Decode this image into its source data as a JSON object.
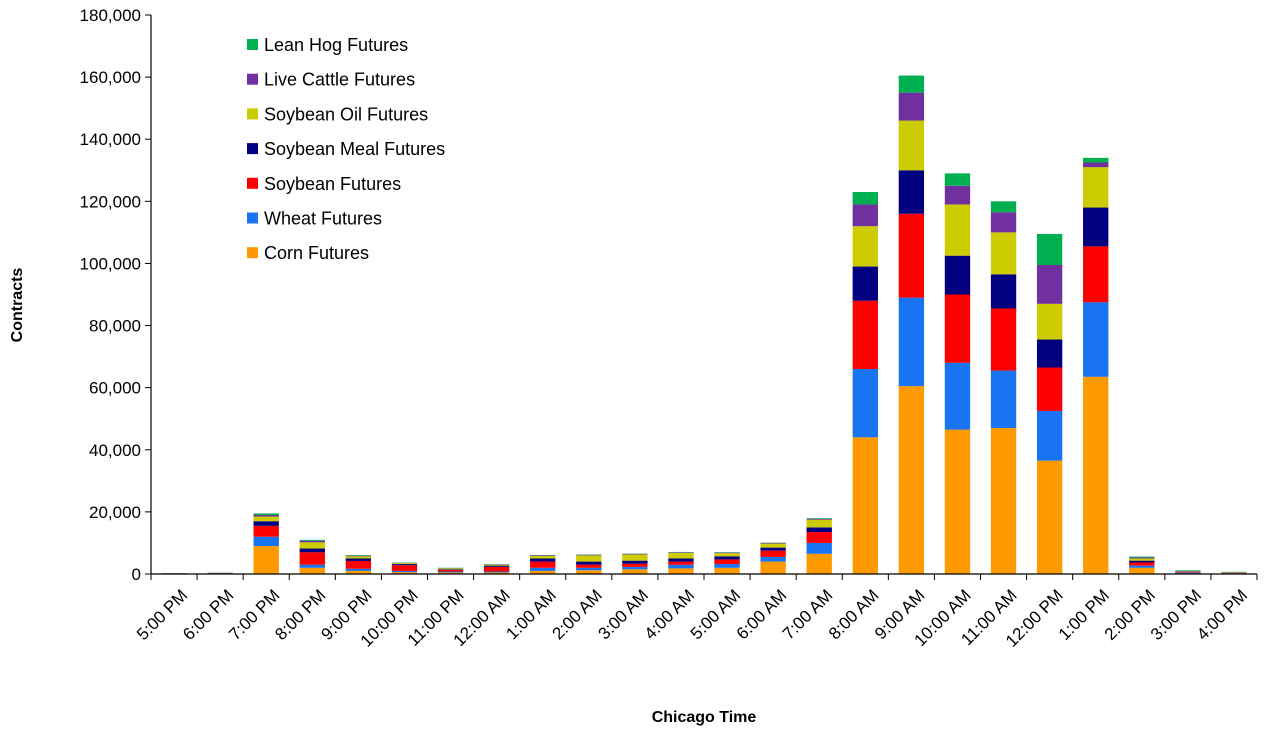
{
  "chart_data": {
    "type": "bar",
    "stacked": true,
    "title": "",
    "xlabel": "Chicago Time",
    "ylabel": "Contracts",
    "ylim": [
      0,
      180000
    ],
    "yticks": [
      0,
      20000,
      40000,
      60000,
      80000,
      100000,
      120000,
      140000,
      160000,
      180000
    ],
    "ytick_labels": [
      "0",
      "20,000",
      "40,000",
      "60,000",
      "80,000",
      "100,000",
      "120,000",
      "140,000",
      "160,000",
      "180,000"
    ],
    "grid": false,
    "legend_position": "top-left",
    "categories": [
      "5:00 PM",
      "6:00 PM",
      "7:00 PM",
      "8:00 PM",
      "9:00 PM",
      "10:00 PM",
      "11:00 PM",
      "12:00 AM",
      "1:00 AM",
      "2:00 AM",
      "3:00 AM",
      "4:00 AM",
      "5:00 AM",
      "6:00 AM",
      "7:00 AM",
      "8:00 AM",
      "9:00 AM",
      "10:00 AM",
      "11:00 AM",
      "12:00 PM",
      "1:00 PM",
      "2:00 PM",
      "3:00 PM",
      "4:00 PM"
    ],
    "series": [
      {
        "name": "Corn Futures",
        "color": "#FF9900",
        "values": [
          100,
          100,
          9000,
          2000,
          1000,
          600,
          500,
          500,
          1000,
          1200,
          1500,
          1800,
          2000,
          4000,
          6500,
          44000,
          60500,
          46500,
          47000,
          36500,
          63500,
          2000,
          200,
          100
        ]
      },
      {
        "name": "Wheat Futures",
        "color": "#1874F2",
        "values": [
          50,
          100,
          3000,
          1000,
          700,
          400,
          300,
          300,
          1000,
          800,
          800,
          1200,
          1200,
          1500,
          3500,
          22000,
          28500,
          21500,
          18500,
          16000,
          24000,
          700,
          200,
          100
        ]
      },
      {
        "name": "Soybean Futures",
        "color": "#FF0000",
        "values": [
          50,
          50,
          3500,
          4000,
          2500,
          1800,
          500,
          1500,
          2000,
          1000,
          1000,
          1000,
          1500,
          2000,
          3500,
          22000,
          27000,
          22000,
          20000,
          14000,
          18000,
          1000,
          200,
          100
        ]
      },
      {
        "name": "Soybean Meal Futures",
        "color": "#000080",
        "values": [
          50,
          50,
          1500,
          1200,
          800,
          400,
          200,
          400,
          1000,
          1000,
          1000,
          1000,
          1000,
          1000,
          1500,
          11000,
          14000,
          12500,
          11000,
          9000,
          12500,
          600,
          100,
          100
        ]
      },
      {
        "name": "Soybean Oil Futures",
        "color": "#CCCC00",
        "values": [
          50,
          50,
          1500,
          2000,
          700,
          300,
          300,
          300,
          800,
          2000,
          2000,
          1800,
          1000,
          1300,
          2500,
          13000,
          16000,
          16500,
          13500,
          11500,
          13000,
          700,
          100,
          100
        ]
      },
      {
        "name": "Live Cattle Futures",
        "color": "#7030A0",
        "values": [
          0,
          50,
          500,
          500,
          200,
          100,
          100,
          100,
          200,
          200,
          200,
          200,
          200,
          200,
          300,
          7000,
          9000,
          6000,
          6500,
          12500,
          1500,
          300,
          200,
          100
        ]
      },
      {
        "name": "Lean Hog Futures",
        "color": "#00B050",
        "values": [
          0,
          50,
          500,
          300,
          200,
          100,
          100,
          100,
          100,
          100,
          100,
          100,
          100,
          100,
          200,
          4000,
          5500,
          4000,
          3500,
          10000,
          1500,
          300,
          200,
          100
        ]
      }
    ]
  }
}
